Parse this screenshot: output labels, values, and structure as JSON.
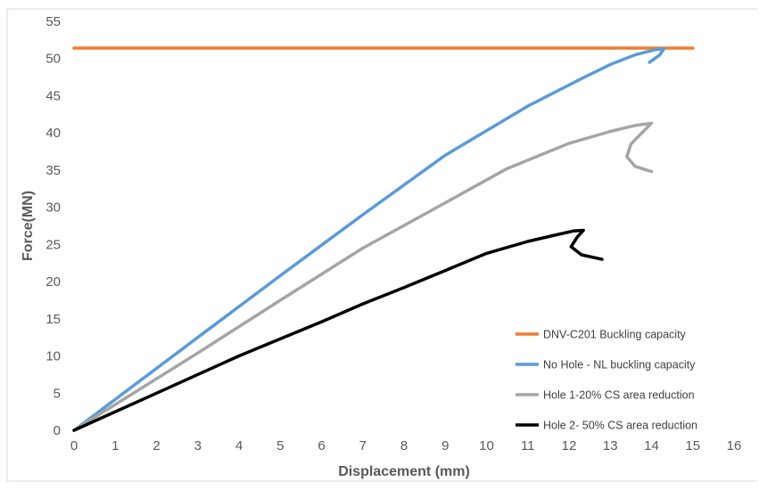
{
  "chart_data": {
    "type": "line",
    "title": "",
    "xlabel": "Displacement (mm)",
    "ylabel": "Force(MN)",
    "xlim": [
      0,
      16
    ],
    "ylim": [
      0,
      55
    ],
    "xticks": [
      0,
      1,
      2,
      3,
      4,
      5,
      6,
      7,
      8,
      9,
      10,
      11,
      12,
      13,
      14,
      15,
      16
    ],
    "yticks": [
      0,
      5,
      10,
      15,
      20,
      25,
      30,
      35,
      40,
      45,
      50,
      55
    ],
    "grid": "none",
    "legend_position": "bottom-right",
    "series": [
      {
        "name": "DNV-C201 Buckling capacity",
        "color": "#ED7D31",
        "points": [
          [
            0,
            51.4
          ],
          [
            15,
            51.4
          ]
        ]
      },
      {
        "name": "No Hole - NL buckling capacity",
        "color": "#5B9BD5",
        "points": [
          [
            0,
            0
          ],
          [
            3,
            12.5
          ],
          [
            5,
            20.8
          ],
          [
            7,
            29
          ],
          [
            9,
            37
          ],
          [
            11,
            43.6
          ],
          [
            12.3,
            47.3
          ],
          [
            13,
            49.2
          ],
          [
            13.6,
            50.5
          ],
          [
            14.1,
            51.2
          ],
          [
            14.3,
            51.3
          ],
          [
            14.2,
            50.5
          ],
          [
            13.95,
            49.5
          ]
        ]
      },
      {
        "name": "Hole 1-20% CS area reduction",
        "color": "#A5A5A5",
        "points": [
          [
            0,
            0
          ],
          [
            3,
            10.4
          ],
          [
            5,
            17.5
          ],
          [
            7,
            24.5
          ],
          [
            9,
            30.6
          ],
          [
            10.5,
            35.2
          ],
          [
            12,
            38.6
          ],
          [
            13,
            40.2
          ],
          [
            13.6,
            41
          ],
          [
            14,
            41.3
          ],
          [
            13.8,
            40.2
          ],
          [
            13.5,
            38.5
          ],
          [
            13.4,
            36.8
          ],
          [
            13.6,
            35.5
          ],
          [
            14,
            34.8
          ]
        ]
      },
      {
        "name": "Hole 2- 50% CS area reduction",
        "color": "#000000",
        "points": [
          [
            0,
            0
          ],
          [
            2,
            5
          ],
          [
            4,
            10
          ],
          [
            6,
            14.6
          ],
          [
            7,
            17
          ],
          [
            8,
            19.2
          ],
          [
            9,
            21.5
          ],
          [
            10,
            23.8
          ],
          [
            11,
            25.4
          ],
          [
            11.7,
            26.3
          ],
          [
            12.1,
            26.8
          ],
          [
            12.35,
            26.9
          ],
          [
            12.2,
            26
          ],
          [
            12.05,
            24.7
          ],
          [
            12.3,
            23.6
          ],
          [
            12.8,
            23
          ]
        ]
      }
    ]
  }
}
